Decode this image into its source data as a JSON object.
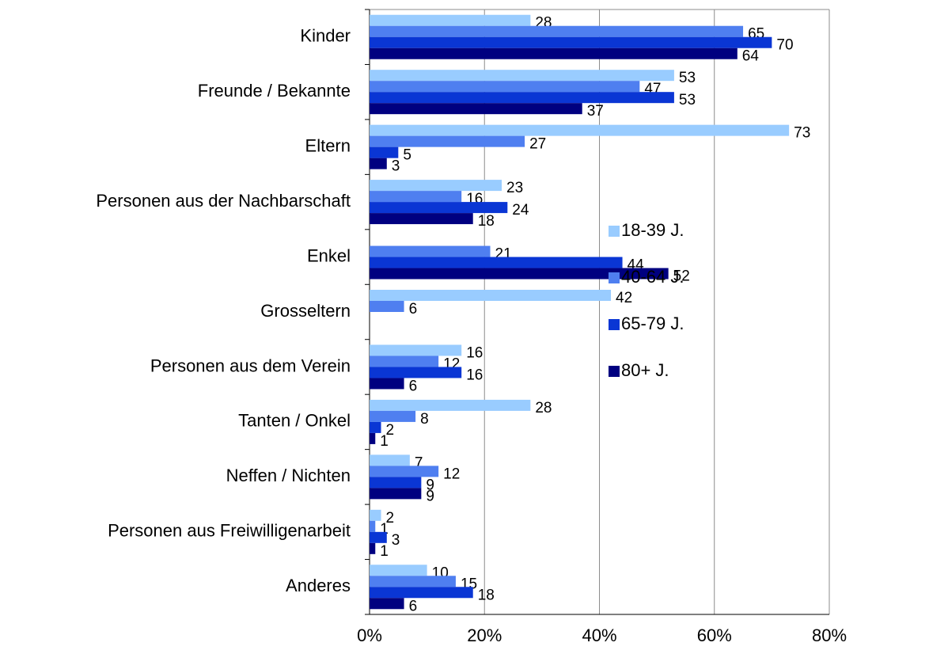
{
  "chart_data": {
    "type": "hbar",
    "categories": [
      "Kinder",
      "Freunde / Bekannte",
      "Eltern",
      "Personen aus der Nachbarschaft",
      "Enkel",
      "Grosseltern",
      "Personen aus dem Verein",
      "Tanten / Onkel",
      "Neffen / Nichten",
      "Personen aus Freiwilligenarbeit",
      "Anderes"
    ],
    "series": [
      {
        "name": "18-39 J.",
        "color": "#99ccff",
        "values": [
          28,
          53,
          73,
          23,
          null,
          42,
          16,
          28,
          7,
          2,
          10
        ]
      },
      {
        "name": "40-64 J.",
        "color": "#4f7ff0",
        "values": [
          65,
          47,
          27,
          16,
          21,
          6,
          12,
          8,
          12,
          1,
          15
        ]
      },
      {
        "name": "65-79 J.",
        "color": "#0a36d4",
        "values": [
          70,
          53,
          5,
          24,
          44,
          null,
          16,
          2,
          9,
          3,
          18
        ]
      },
      {
        "name": "80+ J.",
        "color": "#000080",
        "values": [
          64,
          37,
          3,
          18,
          52,
          null,
          6,
          1,
          9,
          1,
          6
        ]
      }
    ],
    "xlim": [
      0,
      80
    ],
    "xticks": [
      {
        "value": 0,
        "label": "0%"
      },
      {
        "value": 20,
        "label": "20%"
      },
      {
        "value": 40,
        "label": "40%"
      },
      {
        "value": 60,
        "label": "60%"
      },
      {
        "value": 80,
        "label": "80%"
      }
    ],
    "grid": true,
    "legend": "right"
  }
}
